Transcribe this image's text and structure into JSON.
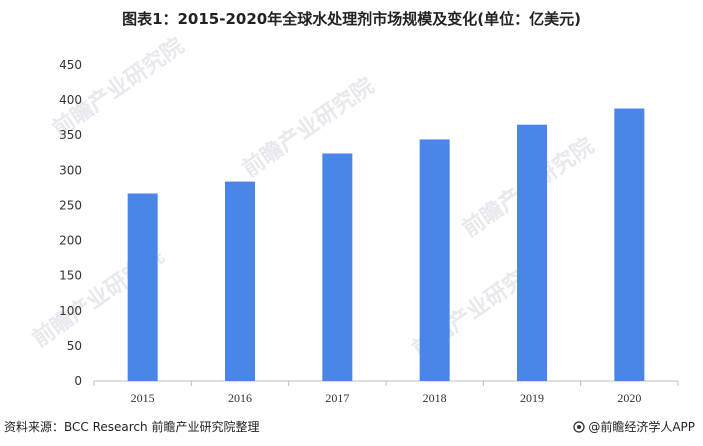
{
  "header": {
    "title": "图表1：2015-2020年全球水处理剂市场规模及变化(单位：亿美元)"
  },
  "footer": {
    "source": "资料来源：BCC Research 前瞻产业研究院整理",
    "brand": "@前瞻经济学人APP"
  },
  "watermark": {
    "text": "前瞻产业研究院"
  },
  "colors": {
    "bar": "#4a86e8",
    "axis": "#bfbfbf"
  },
  "chart_data": {
    "type": "bar",
    "title": "图表1：2015-2020年全球水处理剂市场规模及变化(单位：亿美元)",
    "xlabel": "",
    "ylabel": "",
    "categories": [
      "2015",
      "2016",
      "2017",
      "2018",
      "2019",
      "2020"
    ],
    "values": [
      267,
      284,
      324,
      344,
      365,
      388
    ],
    "ylim": [
      0,
      450
    ],
    "yticks": [
      0,
      50,
      100,
      150,
      200,
      250,
      300,
      350,
      400,
      450
    ],
    "grid": false,
    "legend": "none"
  }
}
